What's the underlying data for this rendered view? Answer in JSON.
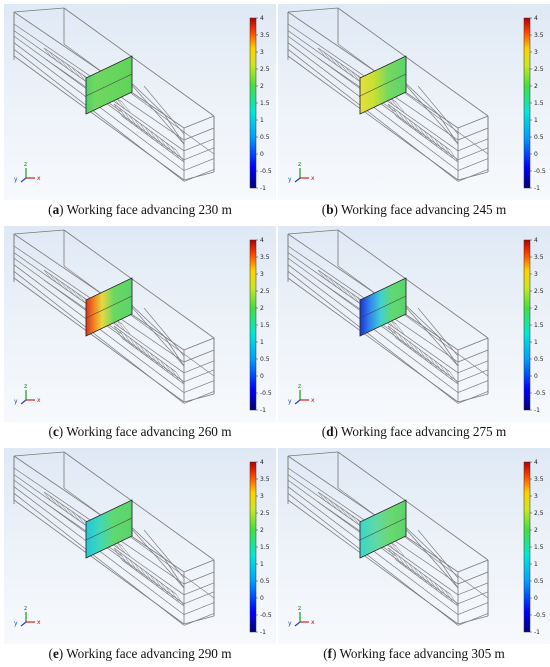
{
  "colorbar": {
    "ticks": [
      "4",
      "3.5",
      "3",
      "2.5",
      "2",
      "1.5",
      "1",
      "0.5",
      "0",
      "-0.5",
      "-1"
    ],
    "min": -1,
    "max": 4
  },
  "axis_triad": {
    "x": "x",
    "y": "y",
    "z": "z"
  },
  "panels": [
    {
      "id": "a",
      "letter": "a",
      "text": " Working face advancing 230 m",
      "pattern": "green-uniform"
    },
    {
      "id": "b",
      "letter": "b",
      "text": " Working face advancing 245 m",
      "pattern": "yellow-left"
    },
    {
      "id": "c",
      "letter": "c",
      "text": " Working face advancing 260 m",
      "pattern": "red-left"
    },
    {
      "id": "d",
      "letter": "d",
      "text": " Working face advancing 275 m",
      "pattern": "blue-left"
    },
    {
      "id": "e",
      "letter": "e",
      "text": " Working face advancing 290 m",
      "pattern": "cyan-left"
    },
    {
      "id": "f",
      "letter": "f",
      "text": " Working face advancing 305 m",
      "pattern": "cyan-left-light"
    }
  ],
  "colors": {
    "grid": "#707070",
    "face_green": "#5fd35a",
    "face_yellow": "#e8e23a",
    "face_red": "#e8331e",
    "face_blue": "#1f3fd8",
    "face_cyan": "#2fd0c0"
  }
}
